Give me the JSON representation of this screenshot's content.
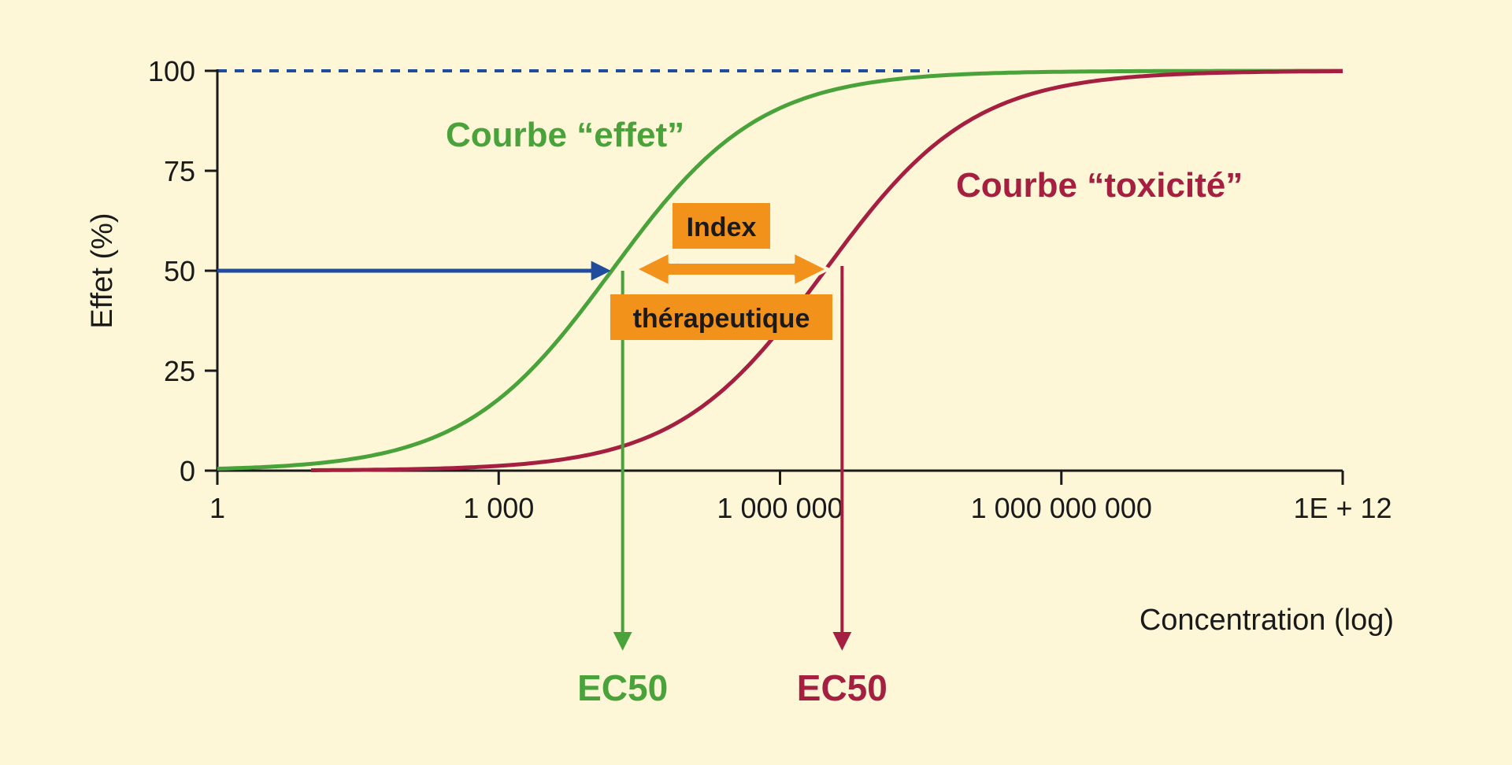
{
  "colors": {
    "background": "#fdf6d7",
    "effect": "#4aa23a",
    "toxicity": "#a52040",
    "reference_arrow": "#1f4c9c",
    "index": "#f2921b",
    "axis": "#1a1a1a"
  },
  "chart_data": {
    "type": "line",
    "xscale": "log",
    "xlim": [
      1,
      1000000000000.0
    ],
    "ylim": [
      0,
      100
    ],
    "xticks": [
      {
        "value": 1,
        "label": "1"
      },
      {
        "value": 1000,
        "label": "1 000"
      },
      {
        "value": 1000000,
        "label": "1 000 000"
      },
      {
        "value": 1000000000,
        "label": "1 000 000 000"
      },
      {
        "value": 1000000000000.0,
        "label": "1E + 12"
      }
    ],
    "yticks": [
      {
        "value": 0,
        "label": "0"
      },
      {
        "value": 25,
        "label": "25"
      },
      {
        "value": 50,
        "label": "50"
      },
      {
        "value": 75,
        "label": "75"
      },
      {
        "value": 100,
        "label": "100"
      }
    ],
    "xlabel": "Concentration (log)",
    "ylabel": "Effet (%)",
    "reference_line": {
      "y": 100,
      "style": "dashed"
    },
    "series": [
      {
        "name": "Courbe “effet”",
        "color": "#4aa23a",
        "ec50": 16000,
        "hill_slope": 0.55,
        "x_range": [
          1,
          1000000000000.0
        ]
      },
      {
        "name": "Courbe “toxicité”",
        "color": "#a52040",
        "ec50": 3000000,
        "hill_slope": 0.55,
        "x_range": [
          10,
          1000000000000.0
        ]
      }
    ],
    "annotations": {
      "ec50_effect_label": "EC50",
      "ec50_toxicity_label": "EC50",
      "index_top": "Index",
      "index_bottom": "thérapeutique"
    }
  }
}
